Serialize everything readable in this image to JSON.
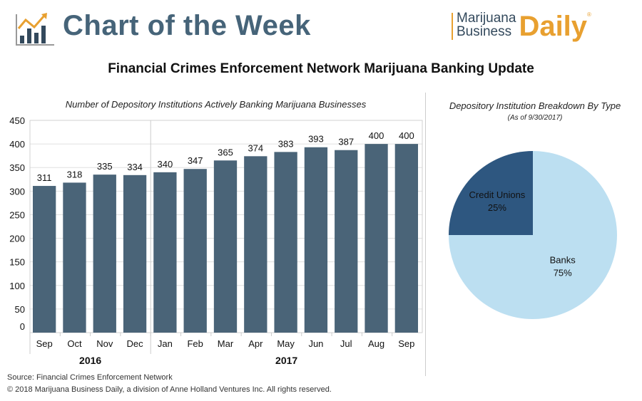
{
  "header": {
    "title": "Chart of the Week",
    "logo_line1": "Marijuana",
    "logo_line2": "Business",
    "logo_daily": "Daily",
    "logo_mark": "®"
  },
  "main_title": "Financial Crimes Enforcement Network Marijuana Banking Update",
  "colors": {
    "bar": "#4a6478",
    "credit_unions": "#2e5780",
    "banks": "#bcdff1",
    "accent": "#e8a030"
  },
  "chart_data": [
    {
      "type": "bar",
      "title": "Number of Depository Institutions Actively Banking Marijuana Businesses",
      "categories": [
        "Sep",
        "Oct",
        "Nov",
        "Dec",
        "Jan",
        "Feb",
        "Mar",
        "Apr",
        "May",
        "Jun",
        "Jul",
        "Aug",
        "Sep"
      ],
      "values": [
        311,
        318,
        335,
        334,
        340,
        347,
        365,
        374,
        383,
        393,
        387,
        400,
        400
      ],
      "groups": [
        {
          "label": "2016",
          "count": 4
        },
        {
          "label": "2017",
          "count": 9
        }
      ],
      "yticks": [
        0,
        50,
        100,
        150,
        200,
        250,
        300,
        350,
        400,
        450
      ],
      "ylim": [
        0,
        450
      ],
      "grid": true,
      "xlabel": "",
      "ylabel": ""
    },
    {
      "type": "pie",
      "title": "Depository Institution Breakdown By Type",
      "subtitle": "(As of 9/30/2017)",
      "slices": [
        {
          "label": "Credit Unions",
          "value": 25,
          "pct": "25%"
        },
        {
          "label": "Banks",
          "value": 75,
          "pct": "75%"
        }
      ]
    }
  ],
  "footer": {
    "source": "Source: Financial Crimes Enforcement Network",
    "copyright": "© 2018 Marijuana Business Daily, a division of Anne Holland Ventures Inc. All rights reserved."
  }
}
